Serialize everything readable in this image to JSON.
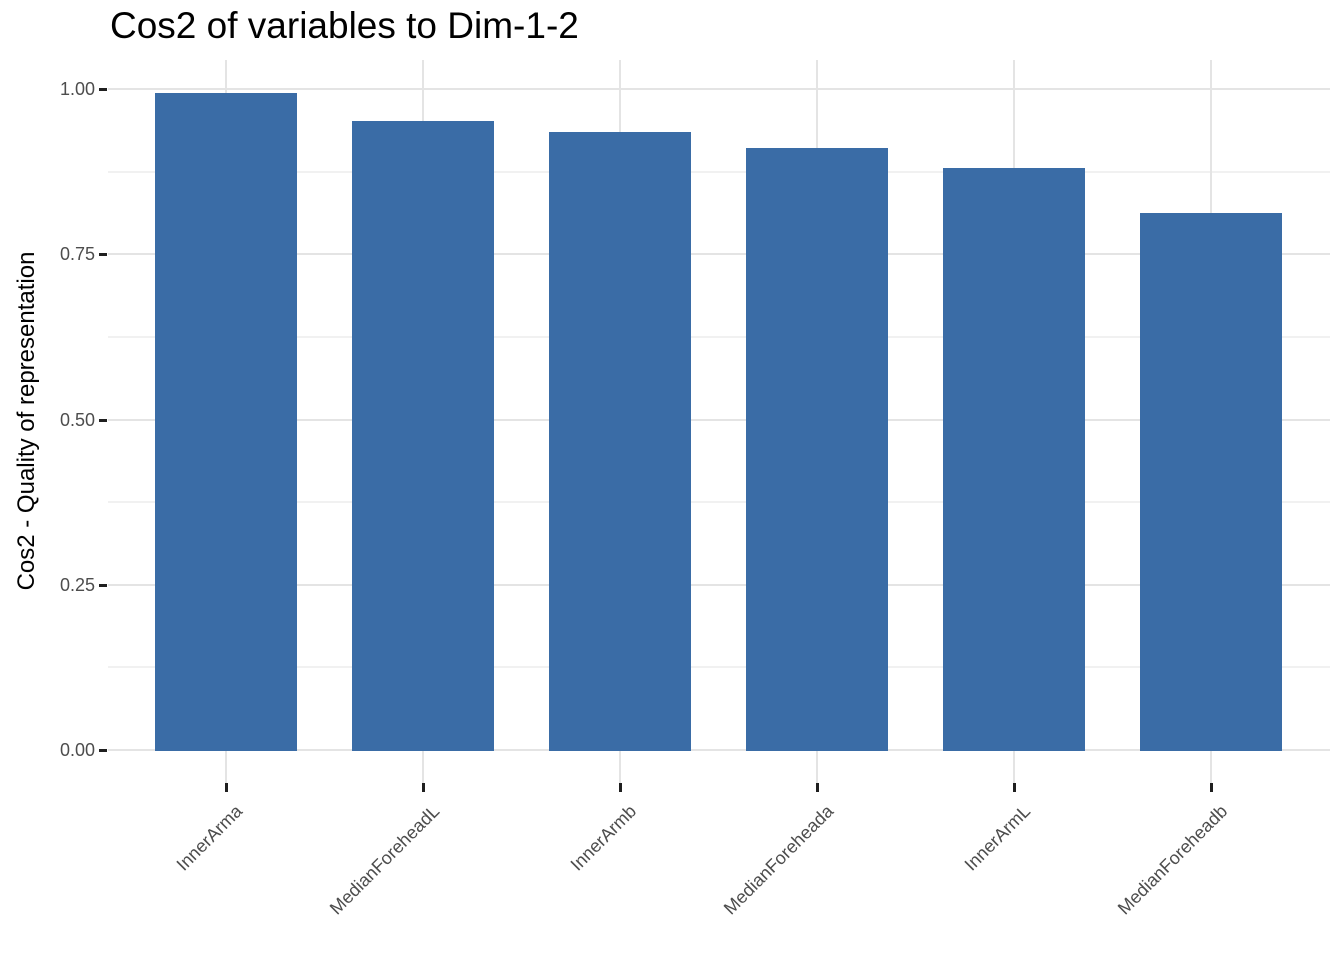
{
  "chart_data": {
    "type": "bar",
    "title": "Cos2 of variables to Dim-1-2",
    "ylabel": "Cos2 - Quality of representation",
    "xlabel": "",
    "categories": [
      "InnerArma",
      "MedianForeheadL",
      "InnerArmb",
      "MedianForeheada",
      "InnerArmL",
      "MedianForeheadb"
    ],
    "values": [
      0.994,
      0.952,
      0.935,
      0.911,
      0.881,
      0.813
    ],
    "ylim": [
      -0.05,
      1.04
    ],
    "y_major_ticks": [
      0,
      0.25,
      0.5,
      0.75,
      1.0
    ],
    "y_tick_labels": [
      "0.00",
      "0.25",
      "0.50",
      "0.75",
      "1.00"
    ],
    "y_minor_ticks": [
      0.125,
      0.375,
      0.625,
      0.875
    ],
    "grid": true,
    "legend_position": "none",
    "colors": {
      "bar_fill": "#3A6CA6",
      "grid_major": "#E4E4E4",
      "grid_minor": "#F1F1F1",
      "axis_tick": "#1F1F1F",
      "axis_text": "#4D4D4D",
      "title_text": "#000000",
      "background": "#FFFFFF"
    }
  }
}
